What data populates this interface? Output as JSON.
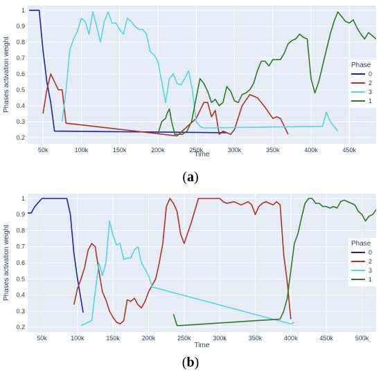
{
  "chart_data": [
    {
      "type": "line",
      "caption_open": "(",
      "caption_letter": "a",
      "caption_close": ")",
      "xlabel": "Time",
      "ylabel": "Phases activation weight",
      "xlim": [
        30000,
        485000
      ],
      "ylim": [
        0.16,
        1.03
      ],
      "xticks": [
        50000,
        100000,
        150000,
        200000,
        250000,
        300000,
        350000,
        400000,
        450000
      ],
      "xtick_labels": [
        "50k",
        "100k",
        "150k",
        "200k",
        "250k",
        "300k",
        "350k",
        "400k",
        "450k"
      ],
      "yticks": [
        0.2,
        0.3,
        0.4,
        0.5,
        0.6,
        0.7,
        0.8,
        0.9,
        1
      ],
      "ytick_labels": [
        "0.2",
        "0.3",
        "0.4",
        "0.5",
        "0.6",
        "0.7",
        "0.8",
        "0.9",
        "1"
      ],
      "legend_title": "Phase",
      "legend_position": "right",
      "grid": true,
      "series": [
        {
          "name": "0",
          "color": "#1f1fb4",
          "x": [
            32000,
            45000,
            50000,
            55000,
            60000,
            65000,
            290000
          ],
          "y": [
            1.0,
            1.0,
            0.75,
            0.55,
            0.42,
            0.24,
            0.23
          ]
        },
        {
          "name": "2",
          "color": "#b5301c",
          "x": [
            50000,
            55000,
            60000,
            65000,
            70000,
            75000,
            80000,
            225000,
            250000,
            260000,
            265000,
            270000,
            275000,
            280000,
            285000,
            290000,
            295000,
            300000,
            310000,
            320000,
            330000,
            340000,
            350000,
            355000,
            360000,
            370000
          ],
          "y": [
            0.35,
            0.5,
            0.6,
            0.55,
            0.5,
            0.5,
            0.29,
            0.21,
            0.32,
            0.42,
            0.42,
            0.33,
            0.37,
            0.22,
            0.24,
            0.23,
            0.22,
            0.25,
            0.4,
            0.47,
            0.45,
            0.39,
            0.32,
            0.33,
            0.32,
            0.22
          ]
        },
        {
          "name": "3",
          "color": "#52d6e8",
          "x": [
            75000,
            80000,
            85000,
            90000,
            95000,
            100000,
            105000,
            110000,
            115000,
            120000,
            125000,
            130000,
            135000,
            140000,
            145000,
            150000,
            155000,
            160000,
            165000,
            170000,
            175000,
            180000,
            185000,
            190000,
            195000,
            200000,
            205000,
            210000,
            215000,
            220000,
            225000,
            230000,
            235000,
            240000,
            245000,
            250000,
            255000,
            260000,
            415000,
            420000,
            425000,
            430000,
            435000
          ],
          "y": [
            0.3,
            0.5,
            0.75,
            0.82,
            0.87,
            0.95,
            0.93,
            0.85,
            0.99,
            0.9,
            0.8,
            0.93,
            0.99,
            0.92,
            0.92,
            0.88,
            0.85,
            0.95,
            0.93,
            0.9,
            0.88,
            0.88,
            0.85,
            0.74,
            0.72,
            0.68,
            0.55,
            0.42,
            0.57,
            0.6,
            0.54,
            0.53,
            0.57,
            0.62,
            0.5,
            0.3,
            0.27,
            0.26,
            0.27,
            0.36,
            0.3,
            0.27,
            0.24
          ]
        },
        {
          "name": "1",
          "color": "#2d7a1f",
          "x": [
            200000,
            205000,
            210000,
            212000,
            215000,
            218000,
            222000,
            226000,
            232000,
            238000,
            244000,
            250000,
            255000,
            260000,
            265000,
            270000,
            275000,
            280000,
            285000,
            290000,
            295000,
            300000,
            305000,
            310000,
            315000,
            320000,
            325000,
            330000,
            335000,
            340000,
            345000,
            350000,
            355000,
            360000,
            365000,
            370000,
            375000,
            380000,
            385000,
            390000,
            395000,
            400000,
            405000,
            410000,
            415000,
            420000,
            425000,
            430000,
            435000,
            440000,
            445000,
            450000,
            455000,
            460000,
            465000,
            470000,
            475000,
            480000,
            485000
          ],
          "y": [
            0.22,
            0.3,
            0.32,
            0.35,
            0.38,
            0.3,
            0.22,
            0.22,
            0.22,
            0.24,
            0.3,
            0.45,
            0.57,
            0.54,
            0.49,
            0.42,
            0.44,
            0.4,
            0.42,
            0.52,
            0.49,
            0.43,
            0.42,
            0.47,
            0.48,
            0.5,
            0.54,
            0.62,
            0.68,
            0.68,
            0.65,
            0.69,
            0.69,
            0.69,
            0.73,
            0.79,
            0.81,
            0.82,
            0.85,
            0.83,
            0.82,
            0.57,
            0.48,
            0.55,
            0.65,
            0.75,
            0.85,
            0.93,
            0.99,
            0.96,
            0.93,
            0.92,
            0.94,
            0.89,
            0.85,
            0.82,
            0.86,
            0.84,
            0.82
          ]
        }
      ]
    },
    {
      "type": "line",
      "caption_open": "(",
      "caption_letter": "b",
      "caption_close": ")",
      "xlabel": "Time",
      "ylabel": "Phases activation weight",
      "xlim": [
        30000,
        520000
      ],
      "ylim": [
        0.17,
        1.03
      ],
      "xticks": [
        50000,
        100000,
        150000,
        200000,
        250000,
        300000,
        350000,
        400000,
        450000,
        500000
      ],
      "xtick_labels": [
        "50k",
        "100k",
        "150k",
        "200k",
        "250k",
        "300k",
        "350k",
        "400k",
        "450k",
        "500k"
      ],
      "yticks": [
        0.2,
        0.3,
        0.4,
        0.5,
        0.6,
        0.7,
        0.8,
        0.9,
        1
      ],
      "ytick_labels": [
        "0.2",
        "0.3",
        "0.4",
        "0.5",
        "0.6",
        "0.7",
        "0.8",
        "0.9",
        "1"
      ],
      "legend_title": "Phase",
      "legend_position": "right",
      "grid": true,
      "series": [
        {
          "name": "0",
          "color": "#1f1fb4",
          "x": [
            30000,
            35000,
            40000,
            50000,
            60000,
            85000,
            90000,
            95000,
            100000,
            108000
          ],
          "y": [
            0.91,
            0.91,
            0.95,
            1.0,
            1.0,
            1.0,
            0.9,
            0.66,
            0.5,
            0.29
          ]
        },
        {
          "name": "2",
          "color": "#b5301c",
          "x": [
            95000,
            100000,
            105000,
            110000,
            115000,
            120000,
            125000,
            130000,
            135000,
            140000,
            145000,
            150000,
            155000,
            160000,
            165000,
            170000,
            175000,
            180000,
            185000,
            190000,
            195000,
            200000,
            205000,
            210000,
            215000,
            220000,
            225000,
            230000,
            235000,
            240000,
            245000,
            250000,
            260000,
            270000,
            280000,
            290000,
            300000,
            305000,
            310000,
            320000,
            330000,
            340000,
            345000,
            350000,
            355000,
            360000,
            365000,
            370000,
            375000,
            380000,
            385000,
            390000,
            395000,
            400000
          ],
          "y": [
            0.34,
            0.44,
            0.5,
            0.57,
            0.68,
            0.72,
            0.7,
            0.55,
            0.42,
            0.37,
            0.3,
            0.26,
            0.23,
            0.22,
            0.24,
            0.37,
            0.36,
            0.38,
            0.34,
            0.32,
            0.36,
            0.42,
            0.46,
            0.5,
            0.6,
            0.72,
            0.95,
            1.0,
            0.97,
            0.92,
            0.78,
            0.72,
            0.85,
            1.0,
            1.0,
            1.0,
            1.0,
            0.98,
            0.97,
            0.98,
            0.96,
            0.98,
            0.96,
            0.9,
            0.95,
            0.97,
            0.98,
            0.97,
            0.96,
            0.98,
            0.96,
            0.65,
            0.48,
            0.25
          ]
        },
        {
          "name": "3",
          "color": "#52d6e8",
          "x": [
            105000,
            110000,
            115000,
            120000,
            125000,
            130000,
            135000,
            140000,
            145000,
            150000,
            155000,
            160000,
            165000,
            170000,
            175000,
            180000,
            185000,
            190000,
            195000,
            200000,
            205000,
            400000,
            405000
          ],
          "y": [
            0.21,
            0.22,
            0.23,
            0.24,
            0.42,
            0.6,
            0.52,
            0.6,
            0.86,
            0.77,
            0.71,
            0.72,
            0.62,
            0.63,
            0.63,
            0.68,
            0.7,
            0.6,
            0.56,
            0.52,
            0.45,
            0.22,
            0.23
          ]
        },
        {
          "name": "1",
          "color": "#2d7a1f",
          "x": [
            235000,
            240000,
            245000,
            385000,
            390000,
            395000,
            400000,
            405000,
            410000,
            415000,
            420000,
            425000,
            430000,
            435000,
            440000,
            445000,
            450000,
            455000,
            460000,
            465000,
            470000,
            475000,
            480000,
            485000,
            490000,
            495000,
            500000,
            505000,
            510000,
            515000,
            520000
          ],
          "y": [
            0.28,
            0.21,
            0.21,
            0.25,
            0.3,
            0.38,
            0.55,
            0.72,
            0.78,
            0.88,
            0.97,
            1.0,
            1.0,
            0.97,
            0.97,
            0.95,
            0.95,
            0.94,
            0.95,
            0.94,
            0.98,
            0.99,
            0.98,
            0.97,
            0.96,
            0.92,
            0.9,
            0.86,
            0.89,
            0.9,
            0.93
          ]
        }
      ]
    }
  ]
}
